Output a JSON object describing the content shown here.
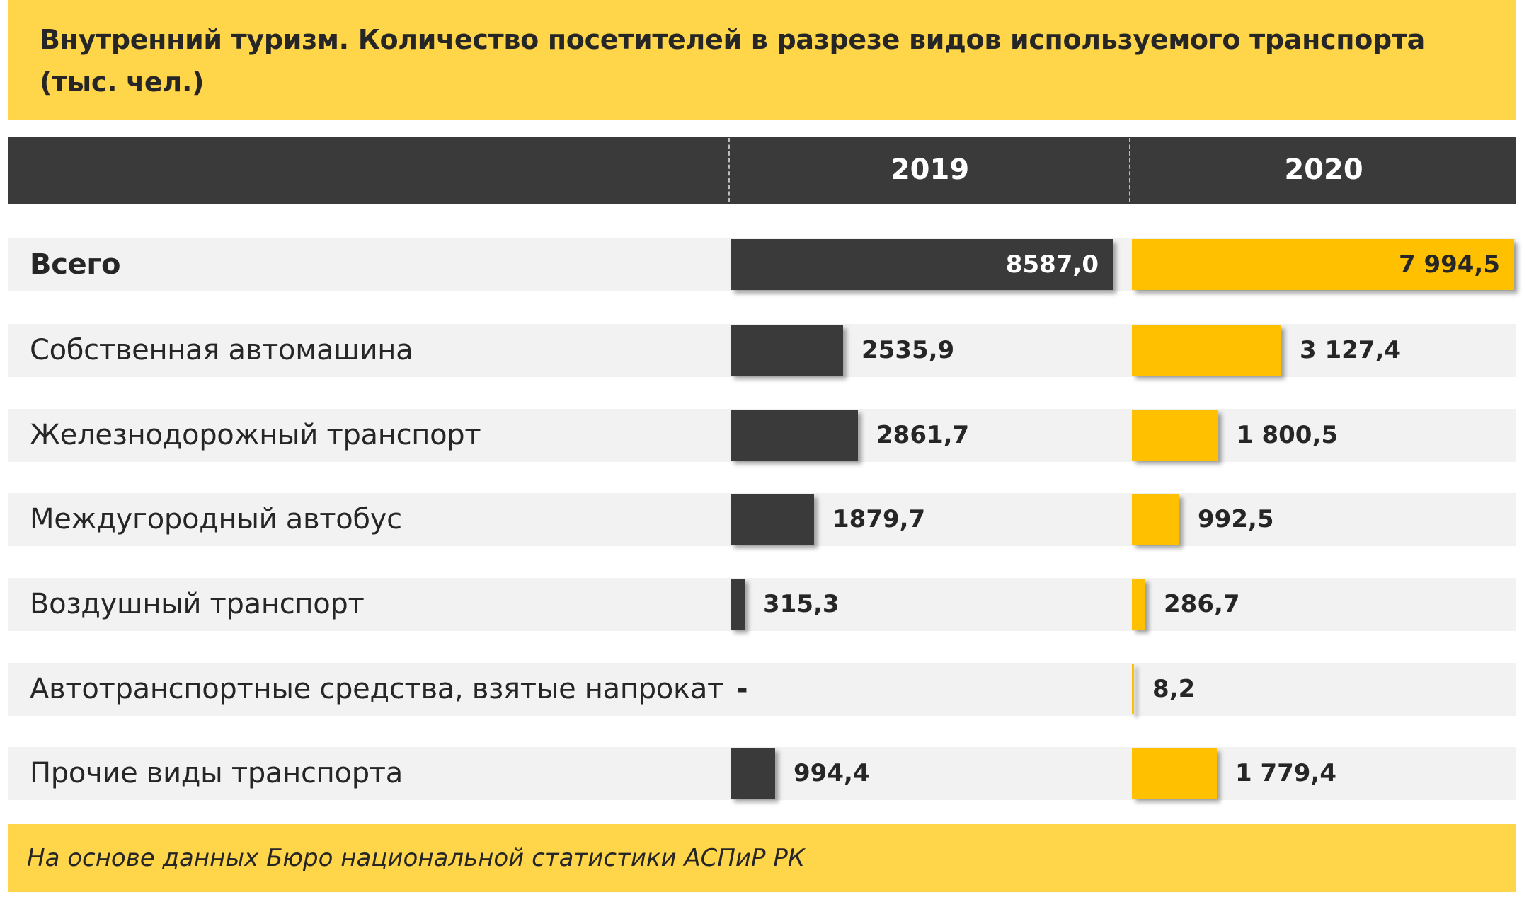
{
  "title": "Внутренний туризм. Количество посетителей в разрезе видов используемого транспорта (тыс. чел.)",
  "footer": "На основе данных Бюро национальной статистики  АСПиР РК",
  "colors": {
    "series_2019": "#3A3A3A",
    "series_2020": "#FFC000",
    "title_bg": "#FFD54A"
  },
  "chart_data": {
    "type": "bar",
    "orientation": "horizontal",
    "title": "Внутренний туризм. Количество посетителей в разрезе видов используемого транспорта (тыс. чел.)",
    "categories": [
      "Всего",
      "Собственная автомашина",
      "Железнодорожный транспорт",
      "Междугородный автобус",
      "Воздушный транспорт",
      "Автотранспортные средства, взятые напрокат",
      "Прочие виды транспорта"
    ],
    "series": [
      {
        "name": "2019",
        "values": [
          8587.0,
          2535.9,
          2861.7,
          1879.7,
          315.3,
          null,
          994.4
        ],
        "labels": [
          "8587,0",
          "2535,9",
          "2861,7",
          "1879,7",
          "315,3",
          "-",
          "994,4"
        ]
      },
      {
        "name": "2020",
        "values": [
          7994.5,
          3127.4,
          1800.5,
          992.5,
          286.7,
          8.2,
          1779.4
        ],
        "labels": [
          "7 994,5",
          "3 127,4",
          "1 800,5",
          "992,5",
          "286,7",
          "8,2",
          "1 779,4"
        ]
      }
    ]
  }
}
